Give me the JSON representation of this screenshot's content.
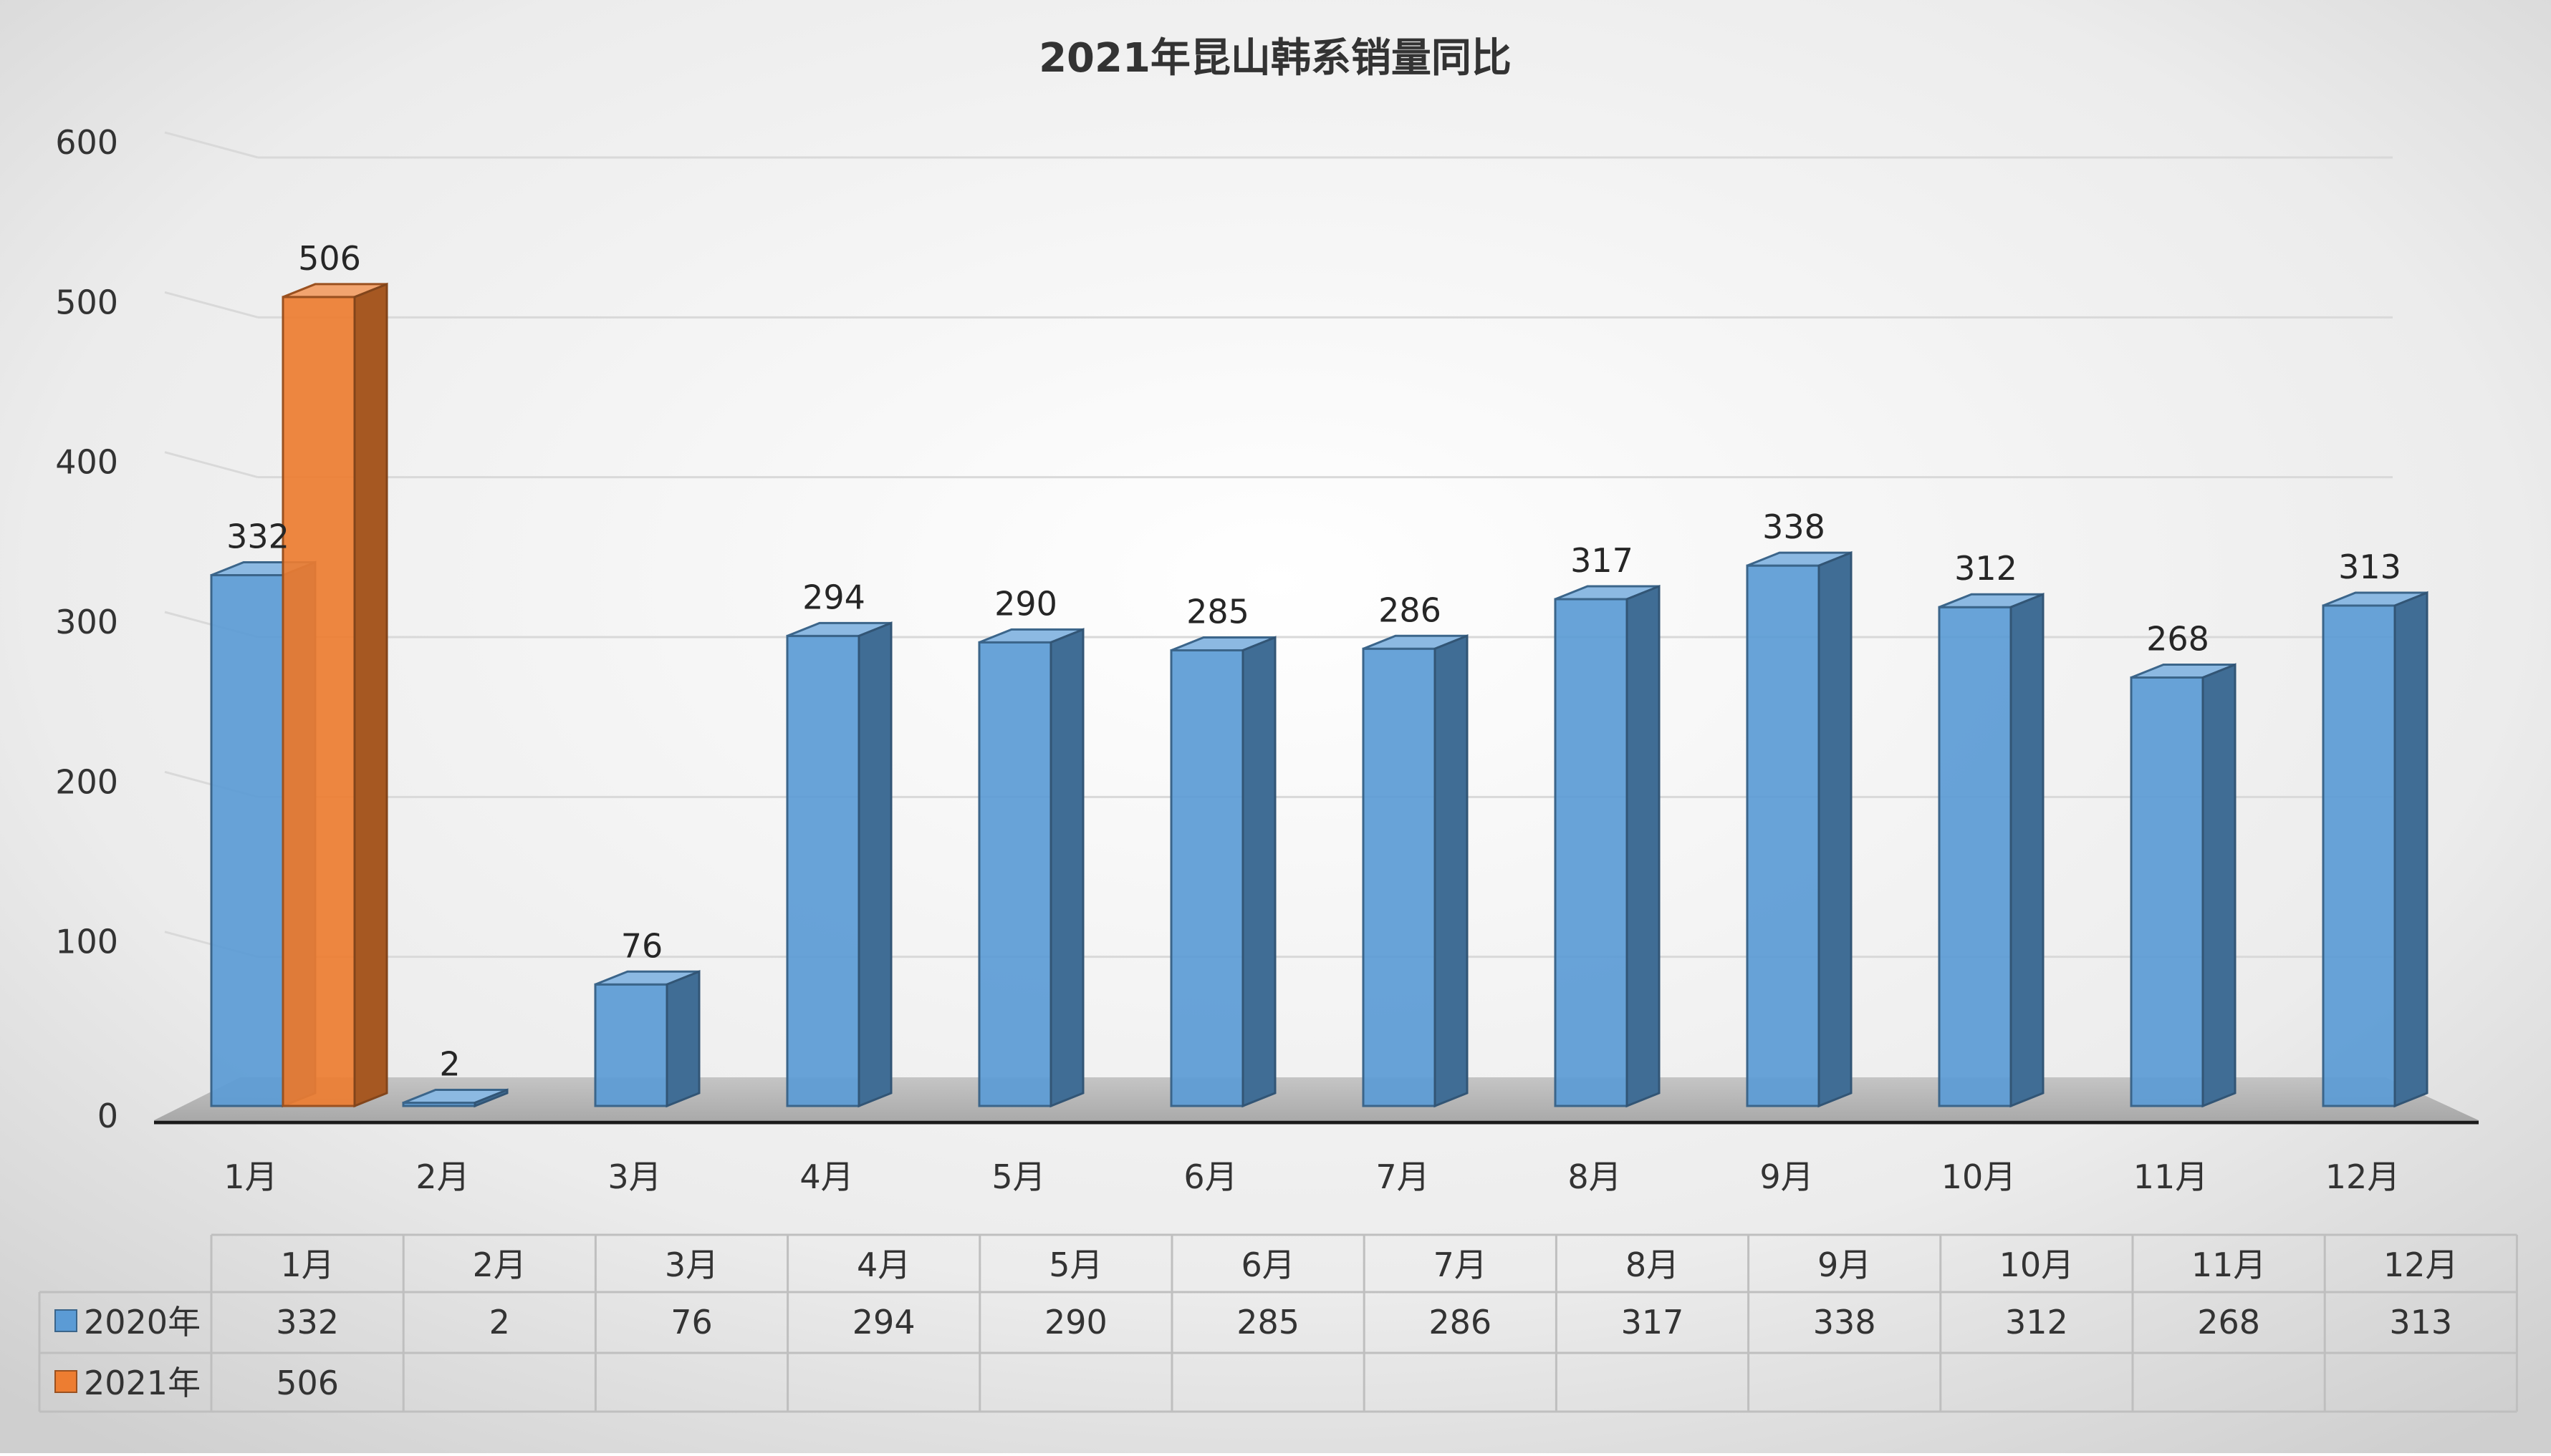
{
  "chart_data": {
    "type": "bar",
    "title": "2021年昆山韩系销量同比",
    "xlabel": "",
    "ylabel": "",
    "ylim": [
      0,
      600
    ],
    "yticks": [
      0,
      100,
      200,
      300,
      400,
      500,
      600
    ],
    "categories": [
      "1月",
      "2月",
      "3月",
      "4月",
      "5月",
      "6月",
      "7月",
      "8月",
      "9月",
      "10月",
      "11月",
      "12月"
    ],
    "series": [
      {
        "name": "2020年",
        "color": "#5b9bd5",
        "values": [
          332,
          2,
          76,
          294,
          290,
          285,
          286,
          317,
          338,
          312,
          268,
          313
        ]
      },
      {
        "name": "2021年",
        "color": "#ed7d31",
        "values": [
          506,
          null,
          null,
          null,
          null,
          null,
          null,
          null,
          null,
          null,
          null,
          null
        ]
      }
    ],
    "grid": true,
    "legend": "data-table",
    "data_table": true,
    "view": "3d-clustered-column"
  }
}
